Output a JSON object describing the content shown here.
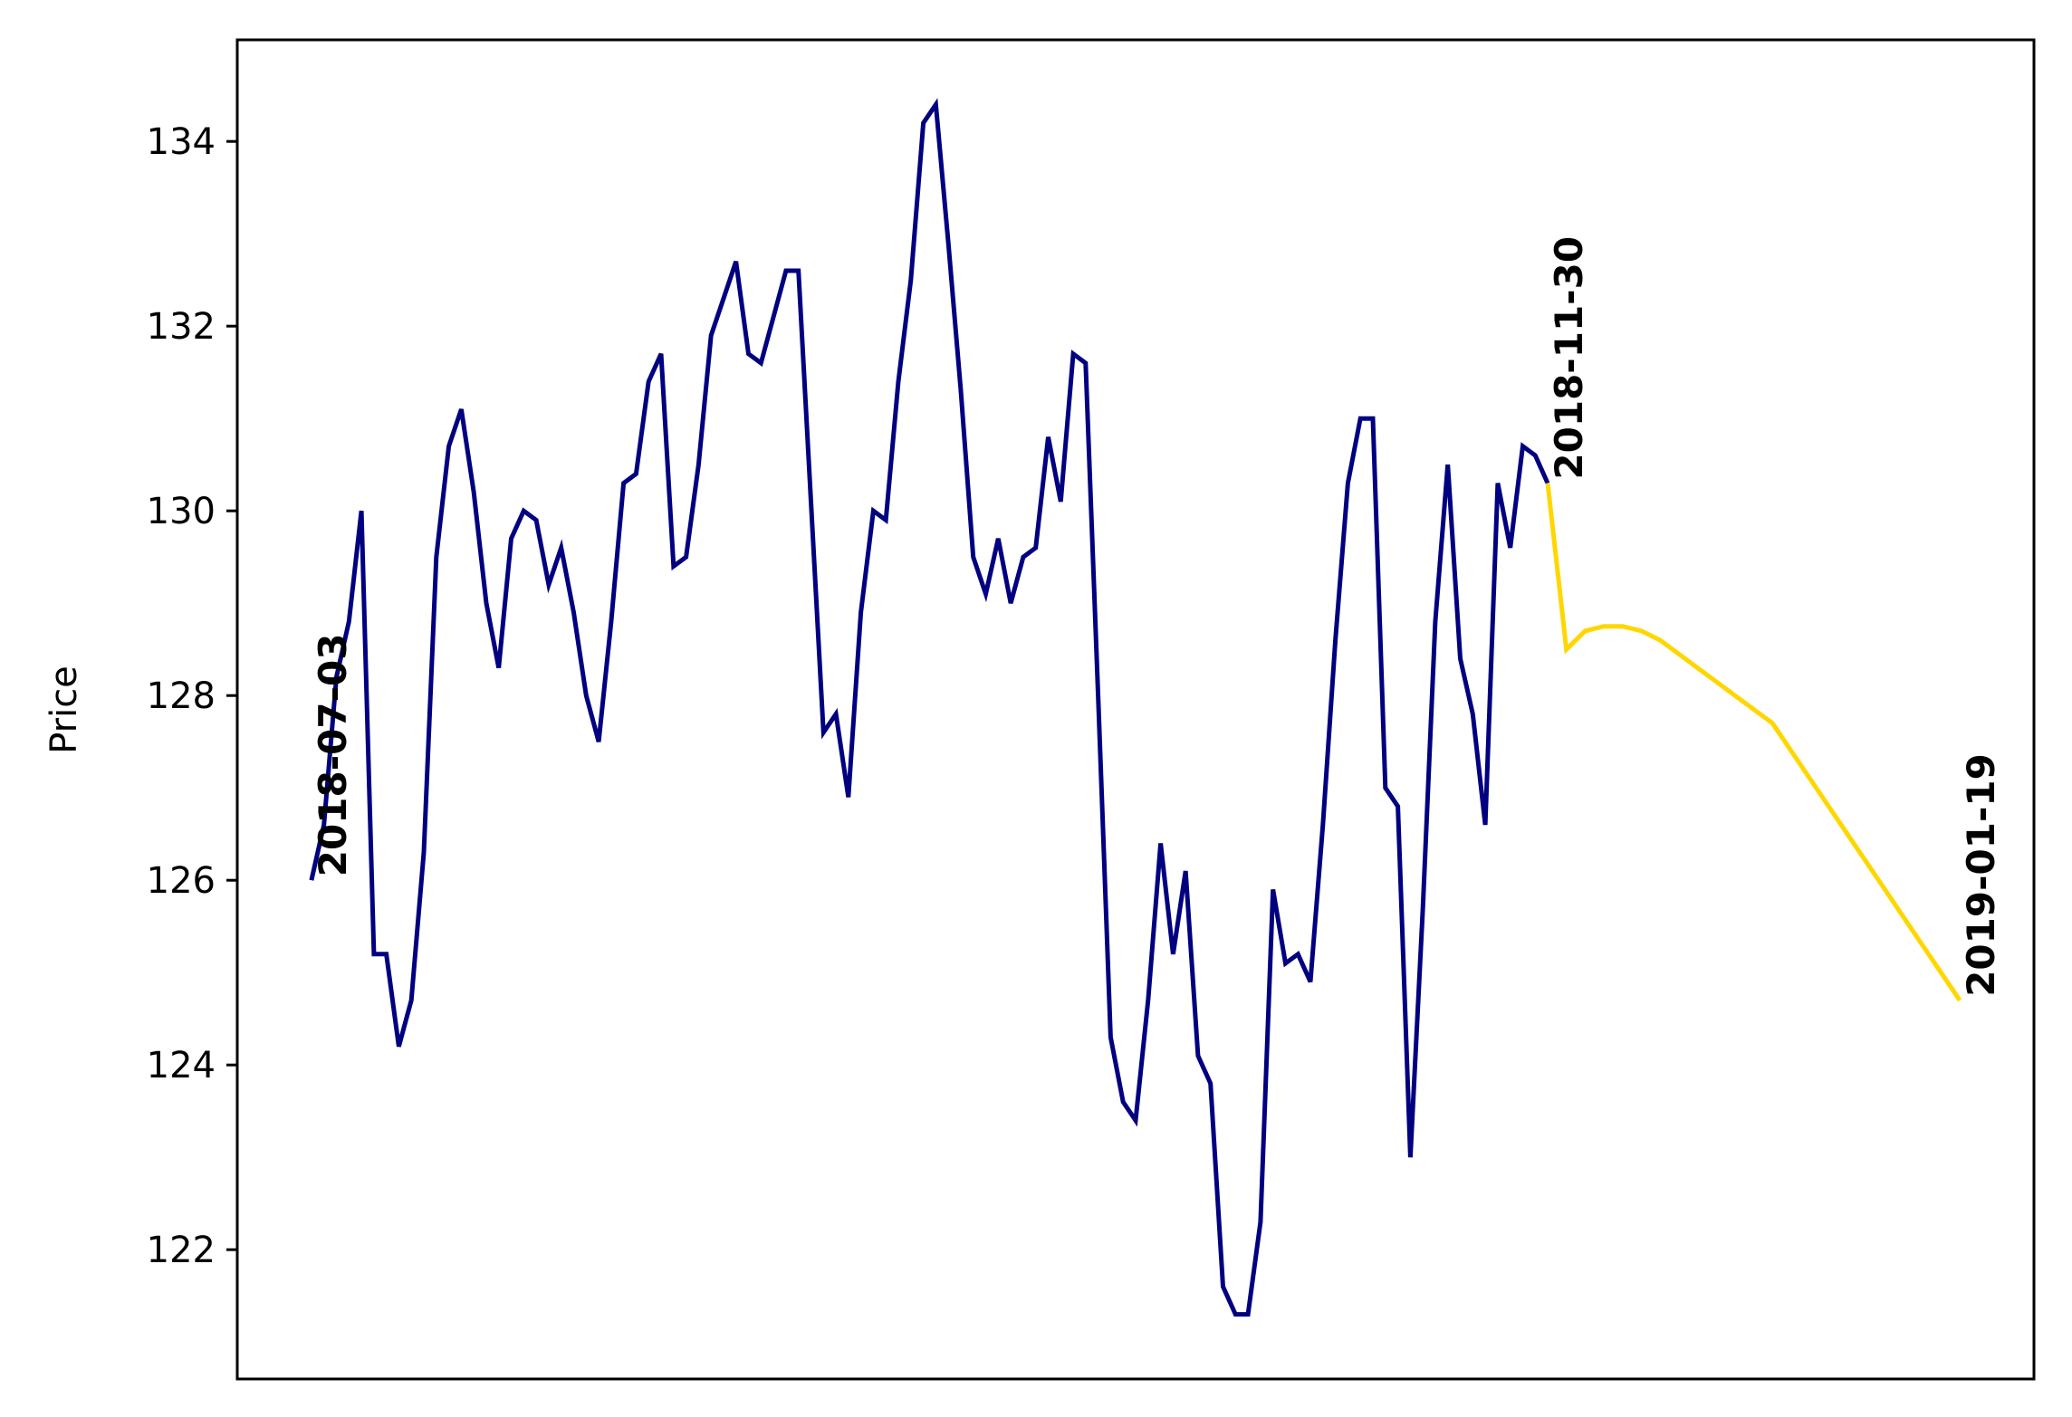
{
  "chart_data": {
    "type": "line",
    "title": "",
    "xlabel": "",
    "ylabel": "Price",
    "ylim": [
      120.6,
      135.1
    ],
    "yticks": [
      122,
      124,
      126,
      128,
      130,
      132,
      134
    ],
    "grid": false,
    "x_axis_ticks_visible": false,
    "series": [
      {
        "color": "#000080",
        "start_date": "2018-07-03",
        "end_date": "2018-11-30",
        "values": [
          126.0,
          126.6,
          128.2,
          128.8,
          130.0,
          125.2,
          125.2,
          124.2,
          124.7,
          126.3,
          129.5,
          130.7,
          131.1,
          130.2,
          129.0,
          128.3,
          129.7,
          130.0,
          129.9,
          129.2,
          129.6,
          128.9,
          128.0,
          127.5,
          128.8,
          130.3,
          130.4,
          131.4,
          131.7,
          129.4,
          129.5,
          130.5,
          131.9,
          132.3,
          132.7,
          131.7,
          131.6,
          132.1,
          132.6,
          132.6,
          130.1,
          127.6,
          127.8,
          126.9,
          128.9,
          130.0,
          129.9,
          131.4,
          132.5,
          134.2,
          134.4,
          132.9,
          131.3,
          129.5,
          129.1,
          129.7,
          129.0,
          129.5,
          129.6,
          130.8,
          130.1,
          131.7,
          131.6,
          128.0,
          124.3,
          123.6,
          123.4,
          124.7,
          126.4,
          125.2,
          126.1,
          124.1,
          123.8,
          121.6,
          121.3,
          121.3,
          122.3,
          125.9,
          125.1,
          125.2,
          124.9,
          126.6,
          128.6,
          130.3,
          131.0,
          131.0,
          127.0,
          126.8,
          123.0,
          125.7,
          128.8,
          130.5,
          128.4,
          127.8,
          126.6,
          130.3,
          129.6,
          130.7,
          130.6,
          130.3
        ]
      },
      {
        "color": "#FFD700",
        "start_date": "2018-11-30",
        "end_date": "2019-01-19",
        "values": [
          130.3,
          128.5,
          128.7,
          128.75,
          128.75,
          128.7,
          128.6,
          128.45,
          128.3,
          128.15,
          128.0,
          127.85,
          127.7,
          127.4,
          127.1,
          126.8,
          126.5,
          126.2,
          125.9,
          125.6,
          125.3,
          125.0,
          124.7
        ]
      }
    ],
    "annotations": [
      {
        "text": "2018-07-03",
        "date": "2018-07-03",
        "value": 126.0
      },
      {
        "text": "2018-11-30",
        "date": "2018-11-30",
        "value": 130.3
      },
      {
        "text": "2019-01-19",
        "date": "2019-01-19",
        "value": 124.7
      }
    ]
  }
}
